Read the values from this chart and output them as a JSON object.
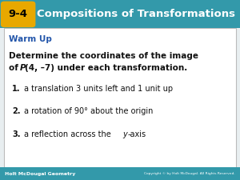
{
  "title_label": "9-4",
  "title_text": "Compositions of Transformations",
  "header_bg": "#3399AA",
  "header_bg2": "#55BBCC",
  "label_bg": "#E8A800",
  "label_text_color": "#000000",
  "title_text_color": "#FFFFFF",
  "warm_up_text": "Warm Up",
  "warm_up_color": "#2255AA",
  "body_bg": "#E8EEF0",
  "body_text_color": "#111111",
  "item_num_color": "#111111",
  "footer_bg": "#3399AA",
  "footer_text_color": "#FFFFFF",
  "footer_left": "Holt McDougal Geometry",
  "footer_right": "Copyright © by Holt McDougal. All Rights Reserved."
}
